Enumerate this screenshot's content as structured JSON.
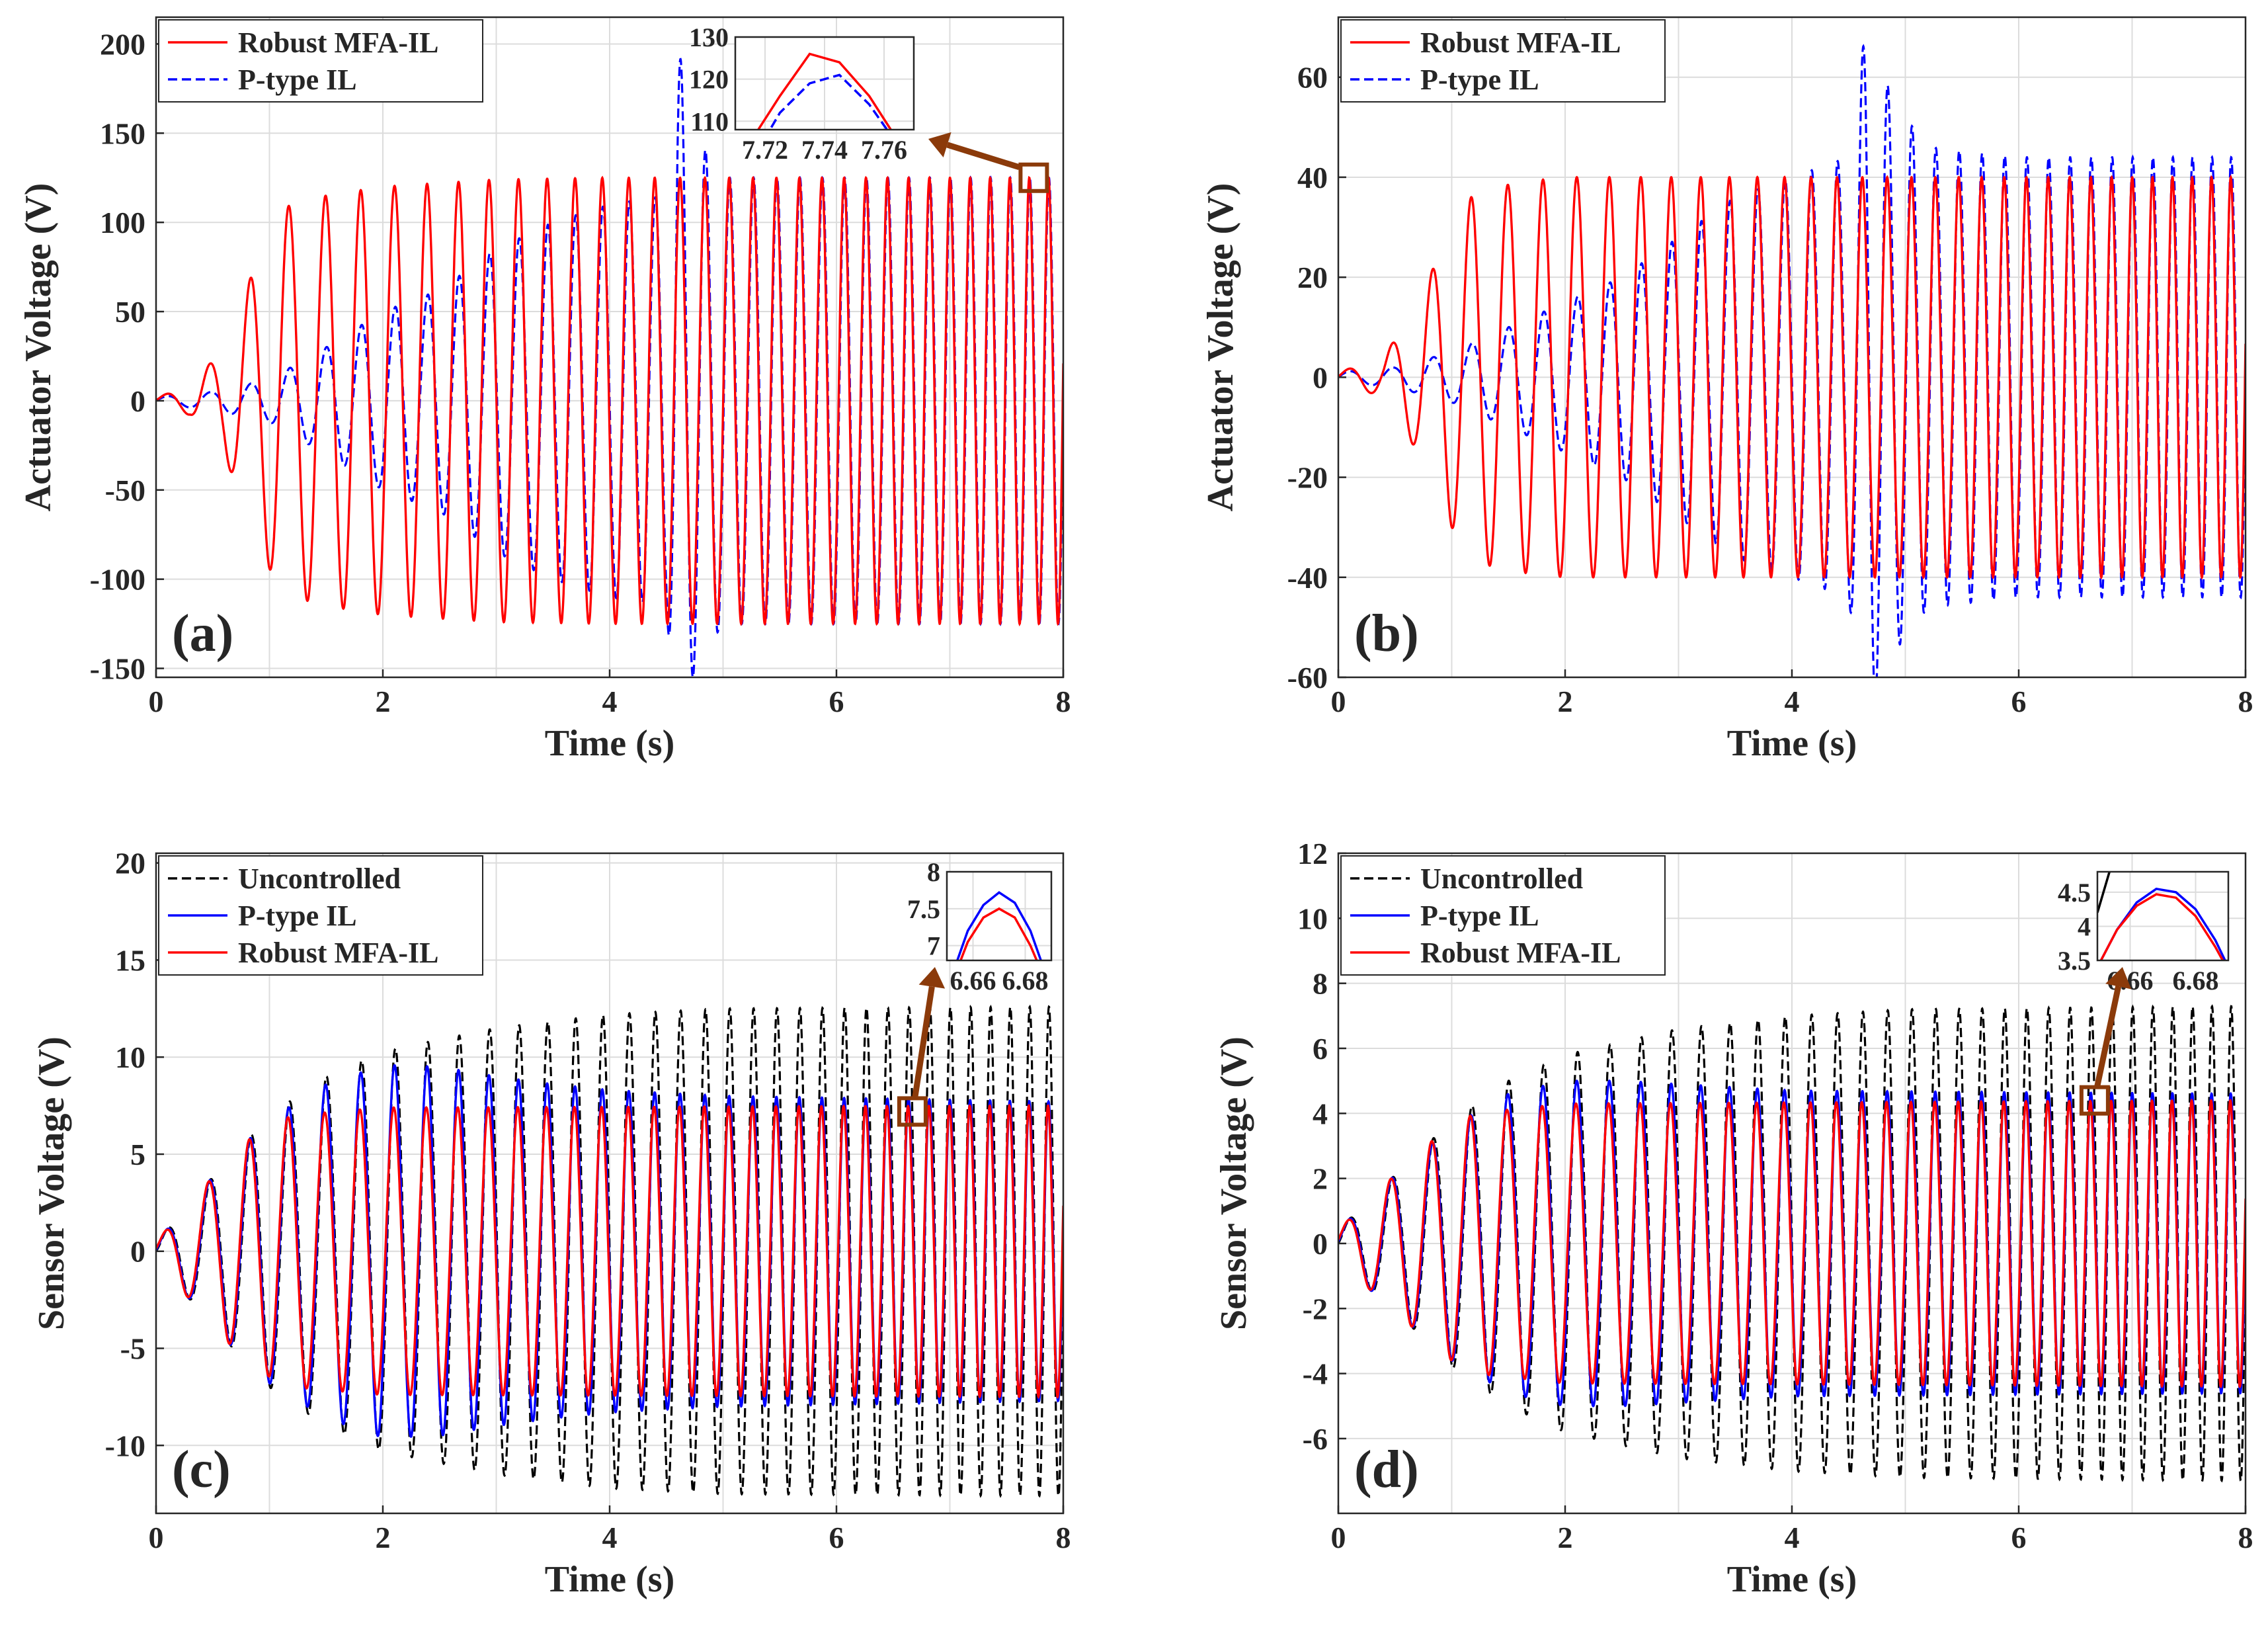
{
  "figure": {
    "description_colors": {
      "red": "#ff0000",
      "blue": "#0000ff",
      "black": "#000000",
      "arrow": "#8b3a0a",
      "grid": "#dcdcdc",
      "axis": "#262626"
    }
  },
  "chart_data": [
    {
      "id": "a",
      "type": "line",
      "panel_label": "(a)",
      "xlabel": "Time (s)",
      "ylabel": "Actuator Voltage (V)",
      "xlim": [
        0,
        8
      ],
      "ylim": [
        -155,
        215
      ],
      "xticks": [
        0,
        2,
        4,
        6,
        8
      ],
      "yticks": [
        -150,
        -100,
        -50,
        0,
        50,
        100,
        150,
        200
      ],
      "legend": [
        "Robust MFA-IL",
        "P-type IL"
      ],
      "legend_position": "top-left",
      "series": [
        {
          "name": "P-type IL",
          "color": "#0000ff",
          "style": "dashed",
          "envelope": [
            [
              0,
              2
            ],
            [
              0.5,
              5
            ],
            [
              1,
              12
            ],
            [
              1.5,
              30
            ],
            [
              2,
              50
            ],
            [
              2.5,
              62
            ],
            [
              3,
              85
            ],
            [
              3.5,
              100
            ],
            [
              4,
              110
            ],
            [
              4.5,
              115
            ],
            [
              4.6,
              200
            ],
            [
              4.75,
              150
            ],
            [
              5,
              125
            ],
            [
              6,
              125
            ],
            [
              8,
              125
            ]
          ],
          "freq_hz": [
            [
              0,
              2.5
            ],
            [
              8,
              6
            ]
          ]
        },
        {
          "name": "Robust MFA-IL",
          "color": "#ff0000",
          "style": "solid",
          "envelope": [
            [
              0,
              2
            ],
            [
              0.3,
              8
            ],
            [
              0.6,
              30
            ],
            [
              0.9,
              80
            ],
            [
              1.1,
              108
            ],
            [
              1.5,
              115
            ],
            [
              2,
              120
            ],
            [
              3,
              124
            ],
            [
              4,
              125
            ],
            [
              8,
              125
            ]
          ],
          "freq_hz": [
            [
              0,
              2.5
            ],
            [
              8,
              6
            ]
          ]
        }
      ],
      "inset": {
        "xlim": [
          7.71,
          7.77
        ],
        "ylim": [
          108,
          130
        ],
        "xticks": [
          7.72,
          7.74,
          7.76
        ],
        "yticks": [
          110,
          120,
          130
        ],
        "tick_labels_x": [
          "7.72",
          "7.74",
          "7.76"
        ],
        "tick_labels_y": [
          "110",
          "120",
          "130"
        ],
        "series": [
          {
            "name": "Robust MFA-IL",
            "x": [
              7.715,
              7.725,
              7.735,
              7.745,
              7.755,
              7.765
            ],
            "y": [
              105,
              116,
              126,
              124,
              116,
              105
            ]
          },
          {
            "name": "P-type IL",
            "x": [
              7.715,
              7.725,
              7.735,
              7.745,
              7.755,
              7.765
            ],
            "y": [
              100,
              112,
              119,
              121,
              114,
              104
            ]
          }
        ],
        "zoom_point": [
          7.74,
          125
        ]
      }
    },
    {
      "id": "b",
      "type": "line",
      "panel_label": "(b)",
      "xlabel": "Time (s)",
      "ylabel": "Actuator Voltage (V)",
      "xlim": [
        0,
        8
      ],
      "ylim": [
        -60,
        72
      ],
      "xticks": [
        0,
        2,
        4,
        6,
        8
      ],
      "yticks": [
        -60,
        -40,
        -20,
        0,
        20,
        40,
        60
      ],
      "legend": [
        "Robust MFA-IL",
        "P-type IL"
      ],
      "legend_position": "top-left",
      "series": [
        {
          "name": "P-type IL",
          "color": "#0000ff",
          "style": "dashed",
          "envelope": [
            [
              0,
              1
            ],
            [
              0.5,
              2
            ],
            [
              1,
              5
            ],
            [
              1.5,
              10
            ],
            [
              2,
              15
            ],
            [
              2.5,
              20
            ],
            [
              3,
              28
            ],
            [
              3.5,
              36
            ],
            [
              4,
              40
            ],
            [
              4.5,
              44
            ],
            [
              4.65,
              70
            ],
            [
              4.9,
              55
            ],
            [
              5.2,
              46
            ],
            [
              6,
              44
            ],
            [
              8,
              44
            ]
          ],
          "freq_hz": [
            [
              0,
              2.5
            ],
            [
              8,
              6
            ]
          ]
        },
        {
          "name": "Robust MFA-IL",
          "color": "#ff0000",
          "style": "solid",
          "envelope": [
            [
              0,
              1
            ],
            [
              0.4,
              4
            ],
            [
              0.7,
              15
            ],
            [
              1,
              30
            ],
            [
              1.2,
              37
            ],
            [
              1.6,
              39
            ],
            [
              2,
              40
            ],
            [
              8,
              40
            ]
          ],
          "freq_hz": [
            [
              0,
              2.5
            ],
            [
              8,
              6
            ]
          ]
        }
      ]
    },
    {
      "id": "c",
      "type": "line",
      "panel_label": "(c)",
      "xlabel": "Time (s)",
      "ylabel": "Sensor Voltage (V)",
      "xlim": [
        0,
        8
      ],
      "ylim": [
        -13.5,
        20.5
      ],
      "xticks": [
        0,
        2,
        4,
        6,
        8
      ],
      "yticks": [
        -10,
        -5,
        0,
        5,
        10,
        15,
        20
      ],
      "legend": [
        "Uncontrolled",
        "P-type IL",
        "Robust MFA-IL"
      ],
      "legend_position": "top-left",
      "series": [
        {
          "name": "Uncontrolled",
          "color": "#000000",
          "style": "dashed",
          "envelope": [
            [
              0,
              0.5
            ],
            [
              0.3,
              2.5
            ],
            [
              0.6,
              4.5
            ],
            [
              1,
              7
            ],
            [
              1.5,
              9
            ],
            [
              2,
              10.3
            ],
            [
              3,
              11.5
            ],
            [
              4,
              12.2
            ],
            [
              5,
              12.5
            ],
            [
              8,
              12.6
            ]
          ],
          "freq_hz": [
            [
              0,
              2.5
            ],
            [
              8,
              6
            ]
          ]
        },
        {
          "name": "P-type IL",
          "color": "#0000ff",
          "style": "solid",
          "envelope": [
            [
              0,
              0.5
            ],
            [
              0.3,
              2.5
            ],
            [
              0.6,
              4.5
            ],
            [
              1,
              6.8
            ],
            [
              1.5,
              8.6
            ],
            [
              2,
              9.6
            ],
            [
              2.5,
              9.5
            ],
            [
              3,
              9
            ],
            [
              3.5,
              8.6
            ],
            [
              4,
              8.3
            ],
            [
              5,
              8
            ],
            [
              8,
              7.7
            ]
          ],
          "freq_hz": [
            [
              0,
              2.5
            ],
            [
              8,
              6
            ]
          ]
        },
        {
          "name": "Robust MFA-IL",
          "color": "#ff0000",
          "style": "solid",
          "envelope": [
            [
              0,
              0.5
            ],
            [
              0.3,
              2.5
            ],
            [
              0.6,
              4.5
            ],
            [
              0.9,
              6.2
            ],
            [
              1.2,
              7
            ],
            [
              2,
              7.4
            ],
            [
              8,
              7.5
            ]
          ],
          "freq_hz": [
            [
              0,
              2.5
            ],
            [
              8,
              6
            ]
          ]
        }
      ],
      "inset": {
        "xlim": [
          6.65,
          6.69
        ],
        "ylim": [
          6.8,
          8
        ],
        "xticks": [
          6.66,
          6.68
        ],
        "yticks": [
          7,
          7.5,
          8
        ],
        "tick_labels_x": [
          "6.66",
          "6.68"
        ],
        "tick_labels_y": [
          "7",
          "7.5",
          "8"
        ],
        "series": [
          {
            "name": "P-type IL",
            "x": [
              6.652,
              6.658,
              6.664,
              6.67,
              6.676,
              6.682,
              6.688
            ],
            "y": [
              6.6,
              7.2,
              7.55,
              7.72,
              7.58,
              7.2,
              6.6
            ]
          },
          {
            "name": "Robust MFA-IL",
            "x": [
              6.652,
              6.658,
              6.664,
              6.67,
              6.676,
              6.682,
              6.688
            ],
            "y": [
              6.5,
              7.05,
              7.38,
              7.5,
              7.38,
              7.0,
              6.5
            ]
          }
        ],
        "zoom_point": [
          6.67,
          7.2
        ]
      }
    },
    {
      "id": "d",
      "type": "line",
      "panel_label": "(d)",
      "xlabel": "Time (s)",
      "ylabel": "Sensor Voltage (V)",
      "xlim": [
        0,
        8
      ],
      "ylim": [
        -8.3,
        12
      ],
      "xticks": [
        0,
        2,
        4,
        6,
        8
      ],
      "yticks": [
        -6,
        -4,
        -2,
        0,
        2,
        4,
        6,
        8,
        10,
        12
      ],
      "legend": [
        "Uncontrolled",
        "P-type IL",
        "Robust MFA-IL"
      ],
      "legend_position": "top-left",
      "series": [
        {
          "name": "Uncontrolled",
          "color": "#000000",
          "style": "dashed",
          "envelope": [
            [
              0,
              0.4
            ],
            [
              0.3,
              1.5
            ],
            [
              0.6,
              2.4
            ],
            [
              1,
              3.8
            ],
            [
              1.5,
              5
            ],
            [
              2,
              5.8
            ],
            [
              3,
              6.6
            ],
            [
              4,
              7
            ],
            [
              5,
              7.2
            ],
            [
              8,
              7.3
            ]
          ],
          "freq_hz": [
            [
              0,
              2.5
            ],
            [
              8,
              6
            ]
          ]
        },
        {
          "name": "P-type IL",
          "color": "#0000ff",
          "style": "solid",
          "envelope": [
            [
              0,
              0.4
            ],
            [
              0.3,
              1.5
            ],
            [
              0.6,
              2.4
            ],
            [
              1,
              3.6
            ],
            [
              1.5,
              4.6
            ],
            [
              2,
              5
            ],
            [
              2.5,
              5
            ],
            [
              3,
              4.9
            ],
            [
              4,
              4.7
            ],
            [
              8,
              4.6
            ]
          ],
          "freq_hz": [
            [
              0,
              2.5
            ],
            [
              8,
              6
            ]
          ]
        },
        {
          "name": "Robust MFA-IL",
          "color": "#ff0000",
          "style": "solid",
          "envelope": [
            [
              0,
              0.4
            ],
            [
              0.3,
              1.5
            ],
            [
              0.6,
              2.4
            ],
            [
              0.9,
              3.4
            ],
            [
              1.2,
              4
            ],
            [
              2,
              4.3
            ],
            [
              8,
              4.4
            ]
          ],
          "freq_hz": [
            [
              0,
              2.5
            ],
            [
              8,
              6
            ]
          ]
        }
      ],
      "inset": {
        "xlim": [
          6.65,
          6.69
        ],
        "ylim": [
          3.5,
          4.8
        ],
        "xticks": [
          6.66,
          6.68
        ],
        "yticks": [
          3.5,
          4,
          4.5
        ],
        "tick_labels_x": [
          "6.66",
          "6.68"
        ],
        "tick_labels_y": [
          "3.5",
          "4",
          "4.5"
        ],
        "series": [
          {
            "name": "P-type IL",
            "x": [
              6.65,
              6.656,
              6.662,
              6.668,
              6.674,
              6.68,
              6.686,
              6.69
            ],
            "y": [
              3.4,
              3.95,
              4.35,
              4.55,
              4.5,
              4.25,
              3.8,
              3.4
            ]
          },
          {
            "name": "Robust MFA-IL",
            "x": [
              6.65,
              6.656,
              6.662,
              6.668,
              6.674,
              6.68,
              6.686,
              6.69
            ],
            "y": [
              3.4,
              3.95,
              4.3,
              4.47,
              4.42,
              4.15,
              3.7,
              3.35
            ]
          },
          {
            "name": "Uncontrolled",
            "x": [
              6.65,
              6.654
            ],
            "y": [
              4.2,
              4.85
            ]
          }
        ],
        "zoom_point": [
          6.67,
          4.4
        ]
      }
    }
  ]
}
